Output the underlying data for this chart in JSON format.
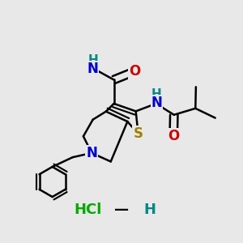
{
  "background_color": "#e8e8e8",
  "bond_color": "#000000",
  "bond_width": 1.8,
  "atoms": {
    "S": {
      "color": "#a08000",
      "fontsize": 12
    },
    "N": {
      "color": "#0000cc",
      "fontsize": 12
    },
    "O": {
      "color": "#cc0000",
      "fontsize": 12
    },
    "H": {
      "color": "#008888",
      "fontsize": 11
    },
    "Cl": {
      "color": "#00aa00",
      "fontsize": 13
    }
  },
  "figsize": [
    3.0,
    3.0
  ],
  "dpi": 100
}
